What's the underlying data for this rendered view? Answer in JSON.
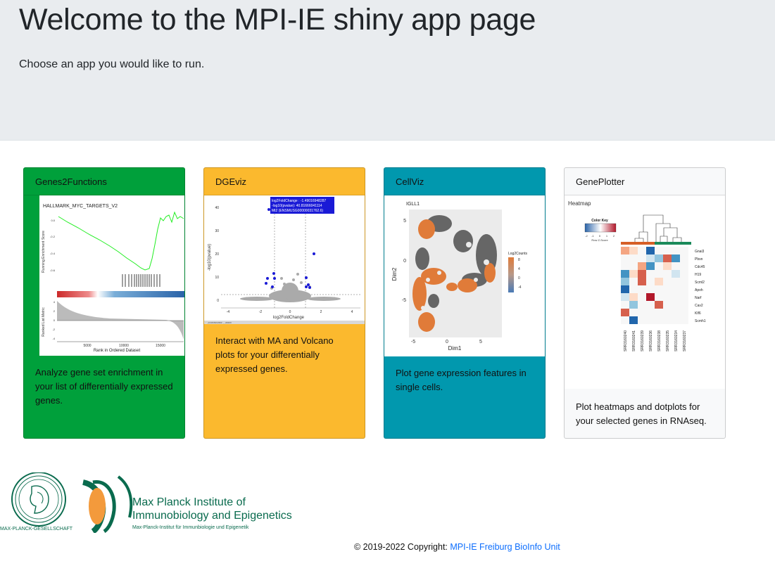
{
  "jumbotron": {
    "title": "Welcome to the MPI-IE shiny app page",
    "subtitle": "Choose an app you would like to run."
  },
  "cards": [
    {
      "title": "Genes2Functions",
      "description": "Analyze gene set enrichment in your list of differentially expressed genes.",
      "color": "#00a03b",
      "thumbnail": {
        "plot_title": "HALLMARK_MYC_TARGETS_V2",
        "ylabel_top": "Running Enrichment Score",
        "ylabel_bottom": "Ranked List Metric",
        "xlabel": "Rank in Ordered Dataset",
        "yticks_top": [
          "0.0",
          "-0.2",
          "-0.4",
          "-0.6"
        ],
        "yticks_bottom": [
          "4",
          "2",
          "0",
          "-2",
          "-4"
        ],
        "xticks": [
          "5000",
          "10000",
          "15000"
        ]
      }
    },
    {
      "title": "DGEviz",
      "description": "Interact with MA and Volcano plots for your differentially expressed genes.",
      "color": "#fbb92e",
      "thumbnail": {
        "tooltip_lines": [
          "log2FoldChange : -1.49016948287",
          "-log10(pvalue): 40.81666041114",
          "Mt2 (ENSMUSG00000031762.6)"
        ],
        "ylabel": "-log10(pvalue)",
        "xlabel": "log2FoldChange",
        "yticks": [
          "40",
          "30",
          "20",
          "10",
          "0"
        ],
        "xticks": [
          "-4",
          "-2",
          "0",
          "2",
          "4"
        ],
        "bottom_strip": "· ,cooraccasc , ,aaox"
      }
    },
    {
      "title": "CellViz",
      "description": "Plot gene expression features in single cells.",
      "color": "#0198ae",
      "thumbnail": {
        "plot_title": "IGLL1",
        "ylabel": "Dim2",
        "xlabel": "Dim1",
        "legend_title": "Log2Counts",
        "legend_ticks": [
          "8",
          "4",
          "0",
          "-4"
        ],
        "yticks": [
          "5",
          "0",
          "-5"
        ],
        "xticks": [
          "-5",
          "0",
          "5"
        ]
      }
    },
    {
      "title": "GenePlotter",
      "description": "Plot heatmaps and dotplots for your selected genes in RNAseq.",
      "color": "#f8f9fa",
      "thumbnail": {
        "plot_title": "Heatmap",
        "color_key_title": "Color Key",
        "color_key_ticks": [
          "-2",
          "-1",
          "0",
          "1",
          "2"
        ],
        "color_key_label": "Row Z-Score",
        "genes": [
          "Gnai3",
          "Pbsn",
          "Cdc45",
          "H19",
          "Scml2",
          "Apoh",
          "Narf",
          "Cav2",
          "Klf6",
          "Scmh1"
        ],
        "samples": [
          "SRR3160240",
          "SRR3160241",
          "SRR3160239",
          "SRR3160236",
          "SRR3160238",
          "SRR3160235",
          "SRR3160234",
          "SRR3160237"
        ]
      }
    }
  ],
  "logos": {
    "mpg_text": "MAX-PLANCK-GESELLSCHAFT",
    "institute_line1": "Max Planck Institute of",
    "institute_line2": "Immunobiology and Epigenetics",
    "institute_line3": "Max-Planck-Institut für Immunbiologie und Epigenetik"
  },
  "footer": {
    "copyright": "© 2019-2022 Copyright: ",
    "link_text": "MPI-IE Freiburg BioInfo Unit"
  }
}
